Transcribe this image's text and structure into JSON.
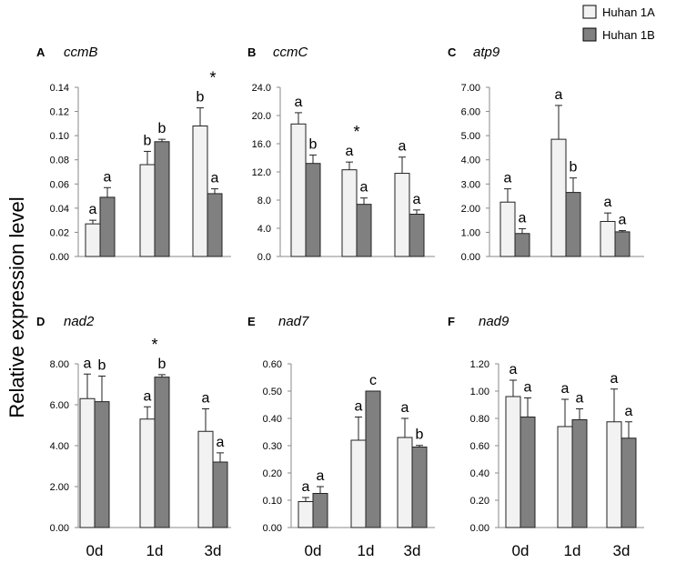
{
  "ylabel": "Relative expression level",
  "legend": {
    "placement": "top-right",
    "entries": [
      {
        "name": "Huhan 1A",
        "color": "#f2f2f2"
      },
      {
        "name": "Huhan 1B",
        "color": "#808080"
      }
    ]
  },
  "xlabels": [
    "0d",
    "1d",
    "3d"
  ],
  "chart_data": [
    {
      "type": "bar",
      "panel": "A",
      "title": "ccmB",
      "categories": [
        "0d",
        "1d",
        "3d"
      ],
      "series": [
        {
          "name": "Huhan 1A",
          "values": [
            0.027,
            0.076,
            0.108
          ],
          "errors": [
            0.003,
            0.011,
            0.015
          ],
          "letters": [
            "a",
            "b",
            "b"
          ]
        },
        {
          "name": "Huhan 1B",
          "values": [
            0.049,
            0.095,
            0.052
          ],
          "errors": [
            0.008,
            0.002,
            0.004
          ],
          "letters": [
            "a",
            "b",
            "a"
          ]
        }
      ],
      "asterisks": [
        "3d"
      ],
      "ylim": [
        0,
        0.14
      ],
      "yticks": [
        "0.00",
        "0.02",
        "0.04",
        "0.06",
        "0.08",
        "0.10",
        "0.12",
        "0.14"
      ]
    },
    {
      "type": "bar",
      "panel": "B",
      "title": "ccmC",
      "categories": [
        "0d",
        "1d",
        "3d"
      ],
      "series": [
        {
          "name": "Huhan 1A",
          "values": [
            18.8,
            12.3,
            11.8
          ],
          "errors": [
            1.6,
            1.1,
            2.3
          ],
          "letters": [
            "a",
            "a",
            "a"
          ]
        },
        {
          "name": "Huhan 1B",
          "values": [
            13.2,
            7.4,
            6.0
          ],
          "errors": [
            1.2,
            0.9,
            0.6
          ],
          "letters": [
            "b",
            "a",
            "a"
          ]
        }
      ],
      "asterisks": [
        "1d"
      ],
      "ylim": [
        0,
        24
      ],
      "yticks": [
        "0.0",
        "4.0",
        "8.0",
        "12.0",
        "16.0",
        "20.0",
        "24.0"
      ]
    },
    {
      "type": "bar",
      "panel": "C",
      "title": "atp9",
      "categories": [
        "0d",
        "1d",
        "3d"
      ],
      "series": [
        {
          "name": "Huhan 1A",
          "values": [
            2.25,
            4.85,
            1.45
          ],
          "errors": [
            0.55,
            1.4,
            0.35
          ],
          "letters": [
            "a",
            "a",
            "a"
          ]
        },
        {
          "name": "Huhan 1B",
          "values": [
            0.95,
            2.65,
            1.02
          ],
          "errors": [
            0.2,
            0.6,
            0.05
          ],
          "letters": [
            "a",
            "b",
            "a"
          ]
        }
      ],
      "asterisks": [],
      "ylim": [
        0,
        7
      ],
      "yticks": [
        "0.00",
        "1.00",
        "2.00",
        "3.00",
        "4.00",
        "5.00",
        "6.00",
        "7.00"
      ]
    },
    {
      "type": "bar",
      "panel": "D",
      "title": "nad2",
      "categories": [
        "0d",
        "1d",
        "3d"
      ],
      "series": [
        {
          "name": "Huhan 1A",
          "values": [
            6.3,
            5.3,
            4.7
          ],
          "errors": [
            1.2,
            0.6,
            1.1
          ],
          "letters": [
            "a",
            "a",
            "a"
          ]
        },
        {
          "name": "Huhan 1B",
          "values": [
            6.15,
            7.35,
            3.2
          ],
          "errors": [
            1.25,
            0.12,
            0.45
          ],
          "letters": [
            "b",
            "b",
            "a"
          ]
        }
      ],
      "asterisks": [
        "1d"
      ],
      "ylim": [
        0,
        8
      ],
      "yticks": [
        "0.00",
        "2.00",
        "4.00",
        "6.00",
        "8.00"
      ]
    },
    {
      "type": "bar",
      "panel": "E",
      "title": "nad7",
      "categories": [
        "0d",
        "1d",
        "3d"
      ],
      "series": [
        {
          "name": "Huhan 1A",
          "values": [
            0.095,
            0.32,
            0.33
          ],
          "errors": [
            0.015,
            0.085,
            0.07
          ],
          "letters": [
            "a",
            "a",
            "a"
          ]
        },
        {
          "name": "Huhan 1B",
          "values": [
            0.125,
            0.5,
            0.295
          ],
          "errors": [
            0.025,
            0.0,
            0.006
          ],
          "letters": [
            "a",
            "c",
            "b"
          ]
        }
      ],
      "asterisks": [],
      "ylim": [
        0,
        0.6
      ],
      "yticks": [
        "0.00",
        "0.10",
        "0.20",
        "0.30",
        "0.40",
        "0.50",
        "0.60"
      ]
    },
    {
      "type": "bar",
      "panel": "F",
      "title": "nad9",
      "categories": [
        "0d",
        "1d",
        "3d"
      ],
      "series": [
        {
          "name": "Huhan 1A",
          "values": [
            0.96,
            0.74,
            0.775
          ],
          "errors": [
            0.12,
            0.2,
            0.24
          ],
          "letters": [
            "a",
            "a",
            "a"
          ]
        },
        {
          "name": "Huhan 1B",
          "values": [
            0.81,
            0.79,
            0.655
          ],
          "errors": [
            0.14,
            0.08,
            0.12
          ],
          "letters": [
            "a",
            "a",
            "a"
          ]
        }
      ],
      "asterisks": [],
      "ylim": [
        0,
        1.2
      ],
      "yticks": [
        "0.00",
        "0.20",
        "0.40",
        "0.60",
        "0.80",
        "1.00",
        "1.20"
      ]
    }
  ]
}
